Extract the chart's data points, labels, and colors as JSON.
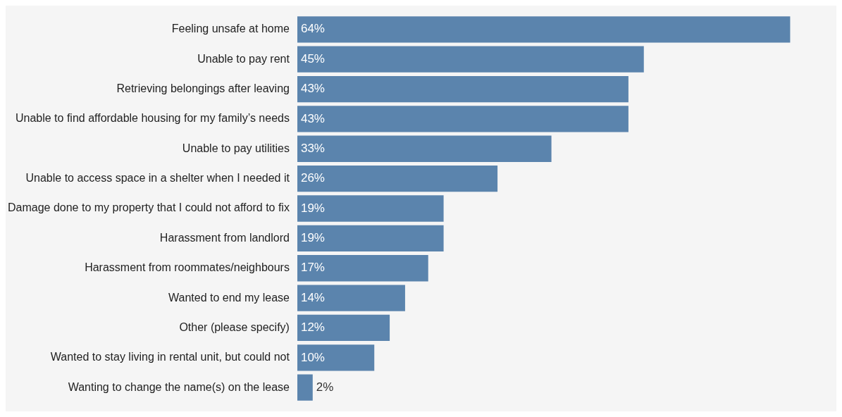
{
  "chart_data": {
    "type": "bar",
    "orientation": "horizontal",
    "grid": false,
    "legend": false,
    "value_labels": [
      "64%",
      "45%",
      "43%",
      "43%",
      "33%",
      "26%",
      "19%",
      "19%",
      "17%",
      "14%",
      "12%",
      "10%",
      "2%"
    ],
    "categories": [
      "Feeling unsafe at home",
      "Unable to pay rent",
      "Retrieving belongings after leaving",
      "Unable to find affordable housing for my family’s needs",
      "Unable to pay utilities",
      "Unable to access space in a shelter when I needed it",
      "Damage done to my property that I could not afford to fix",
      "Harassment from landlord",
      "Harassment from roommates/neighbours",
      "Wanted to end my lease",
      "Other (please specify)",
      "Wanted to stay living in rental unit, but could not",
      "Wanting to change the name(s) on the lease"
    ],
    "values": [
      64,
      45,
      43,
      43,
      33,
      26,
      19,
      19,
      17,
      14,
      12,
      10,
      2
    ],
    "color": "#5b84ad"
  }
}
